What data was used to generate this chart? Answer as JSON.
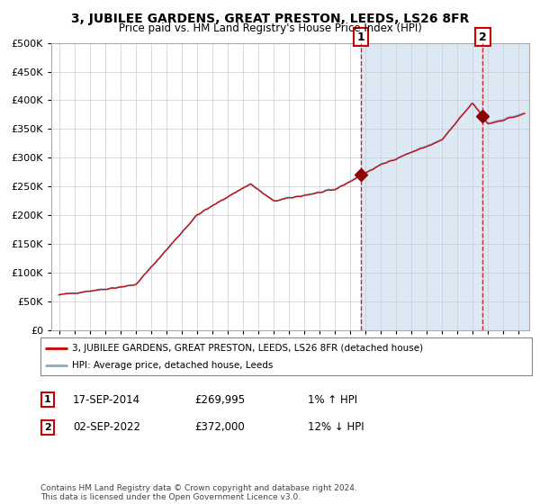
{
  "title": "3, JUBILEE GARDENS, GREAT PRESTON, LEEDS, LS26 8FR",
  "subtitle": "Price paid vs. HM Land Registry's House Price Index (HPI)",
  "legend_line1": "3, JUBILEE GARDENS, GREAT PRESTON, LEEDS, LS26 8FR (detached house)",
  "legend_line2": "HPI: Average price, detached house, Leeds",
  "annotation1_label": "1",
  "annotation1_date": "17-SEP-2014",
  "annotation1_price": "£269,995",
  "annotation1_hpi": "1% ↑ HPI",
  "annotation1_year": 2014.72,
  "annotation1_value": 269995,
  "annotation2_label": "2",
  "annotation2_date": "02-SEP-2022",
  "annotation2_price": "£372,000",
  "annotation2_hpi": "12% ↓ HPI",
  "annotation2_year": 2022.67,
  "annotation2_value": 372000,
  "footer": "Contains HM Land Registry data © Crown copyright and database right 2024.\nThis data is licensed under the Open Government Licence v3.0.",
  "hpi_color": "#aac4dd",
  "hpi_line_color": "#7bafd4",
  "sale_color": "#cc0000",
  "sale_dark_color": "#8b0000",
  "background_color": "#ffffff",
  "plot_bg_color": "#ffffff",
  "shade_color": "#dce9f5",
  "ylim": [
    0,
    500000
  ],
  "xlim_start": 1994.5,
  "xlim_end": 2025.7
}
